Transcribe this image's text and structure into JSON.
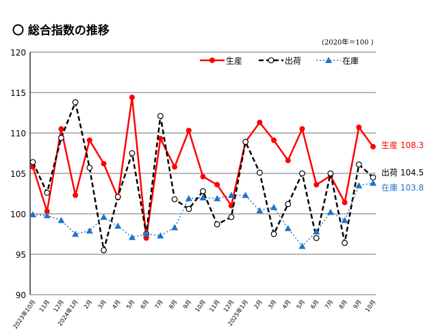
{
  "chart_data": {
    "type": "line",
    "title": "〇 総合指数の推移",
    "subtitle": "(2020年＝100 )",
    "ylim": [
      90,
      120
    ],
    "yticks": [
      90,
      95,
      100,
      105,
      110,
      115,
      120
    ],
    "grid": true,
    "legend_placement": "top-right",
    "categories": [
      "2023年10月",
      "11月",
      "12月",
      "2024年1月",
      "2月",
      "3月",
      "4月",
      "5月",
      "6月",
      "7月",
      "8月",
      "9月",
      "10月",
      "11月",
      "12月",
      "2025年1月",
      "2月",
      "3月",
      "4月",
      "5月",
      "6月",
      "7月",
      "8月",
      "9月",
      "10月"
    ],
    "series": [
      {
        "name": "生産",
        "color": "#ff0000",
        "style": "solid",
        "marker": "filled-circle",
        "end_label": "生産 108.3",
        "values": [
          105.8,
          100.3,
          110.5,
          102.3,
          109.1,
          106.2,
          102.0,
          114.4,
          97.0,
          109.3,
          105.8,
          110.3,
          104.6,
          103.6,
          101.0,
          108.9,
          111.3,
          109.1,
          106.6,
          110.5,
          103.6,
          104.7,
          101.4,
          110.7,
          108.3
        ]
      },
      {
        "name": "出荷",
        "color": "#000000",
        "style": "dashed",
        "marker": "open-circle",
        "end_label": "出荷 104.5",
        "values": [
          106.4,
          102.6,
          109.4,
          113.8,
          105.7,
          95.5,
          102.1,
          107.5,
          97.5,
          112.1,
          101.8,
          100.6,
          102.8,
          98.7,
          99.6,
          108.9,
          105.1,
          97.5,
          101.2,
          105.0,
          97.0,
          105.0,
          96.4,
          106.1,
          104.5
        ]
      },
      {
        "name": "在庫",
        "color": "#1f74c8",
        "style": "dotted",
        "marker": "triangle",
        "end_label": "在庫 103.8",
        "values": [
          99.9,
          99.8,
          99.2,
          97.5,
          97.9,
          99.6,
          98.5,
          97.1,
          97.5,
          97.3,
          98.3,
          101.9,
          102.0,
          101.9,
          102.3,
          102.3,
          100.4,
          100.8,
          98.2,
          96.0,
          97.8,
          100.2,
          99.2,
          103.5,
          103.8
        ]
      }
    ]
  }
}
